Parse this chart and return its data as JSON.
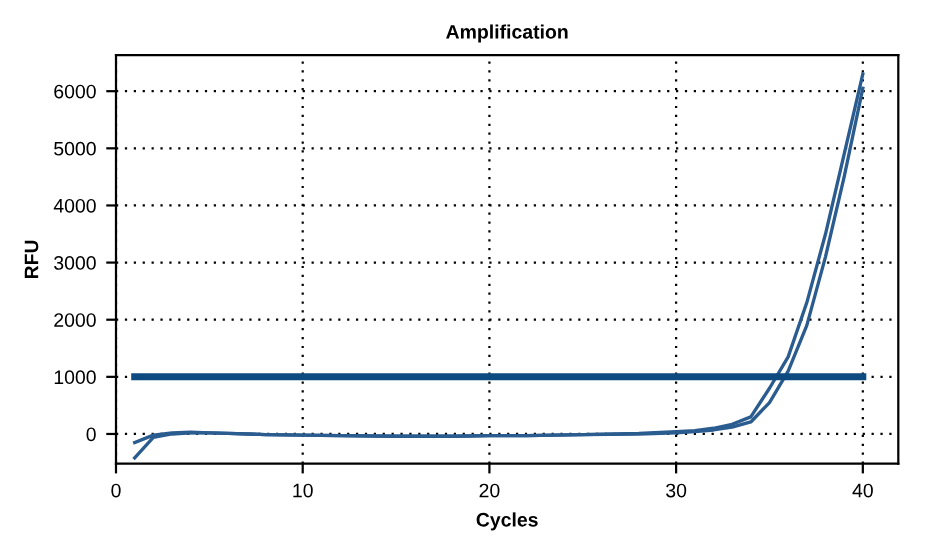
{
  "chart_data": {
    "type": "line",
    "title": "Amplification",
    "xlabel": "Cycles",
    "ylabel": "RFU",
    "series": [
      {
        "color": "#2b5c8f",
        "x": [
          1,
          2,
          3,
          4,
          5,
          6,
          8,
          10,
          12,
          15,
          18,
          20,
          22,
          25,
          28,
          30,
          31,
          32,
          33,
          34,
          35,
          36,
          37,
          38,
          39,
          40
        ],
        "values": [
          -150,
          -20,
          20,
          30,
          20,
          10,
          -10,
          -20,
          -30,
          -40,
          -40,
          -30,
          -30,
          -10,
          10,
          40,
          60,
          100,
          170,
          300,
          800,
          1350,
          2300,
          3500,
          4900,
          6300
        ]
      },
      {
        "color": "#2b5c8f",
        "x": [
          1,
          2,
          3,
          4,
          5,
          6,
          8,
          10,
          12,
          15,
          18,
          20,
          22,
          25,
          28,
          30,
          31,
          32,
          33,
          34,
          35,
          36,
          37,
          38,
          39,
          40
        ],
        "values": [
          -420,
          -60,
          0,
          20,
          20,
          10,
          -10,
          -20,
          -30,
          -40,
          -40,
          -30,
          -30,
          -10,
          0,
          20,
          40,
          70,
          120,
          210,
          550,
          1100,
          1900,
          3100,
          4500,
          6050
        ]
      },
      {
        "color": "#0d4a80",
        "x": [
          1,
          40
        ],
        "values": [
          1000,
          1000
        ]
      }
    ],
    "xlim": [
      0,
      41.9
    ],
    "ylim": [
      -520,
      6630
    ],
    "xticks": [
      0,
      10,
      20,
      30,
      40
    ],
    "yticks": [
      0,
      1000,
      2000,
      3000,
      4000,
      5000,
      6000
    ],
    "grid": true,
    "line_style": "solid",
    "marker": "none"
  }
}
